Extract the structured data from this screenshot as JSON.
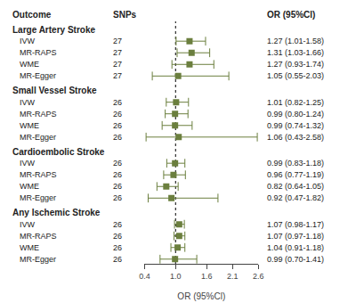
{
  "chart_data": {
    "type": "forest",
    "columns": [
      "Outcome",
      "SNPs",
      "OR (95%Cl)"
    ],
    "xlabel": "OR (95%Cl)",
    "xlim": [
      0.4,
      2.6
    ],
    "xticks": [
      0.4,
      {
        "value": 1.0,
        "label": "1.0"
      },
      1.6,
      2.1,
      2.6
    ],
    "reference": 1.0,
    "color": "#6b7f3e",
    "marker": "square",
    "grid": false,
    "groups": [
      {
        "name": "Large Artery Stroke",
        "rows": [
          {
            "name": "IVW",
            "snps": 27,
            "value": 1.27,
            "ci_low": 1.01,
            "ci_high": 1.58,
            "label": "1.27 (1.01-1.58)"
          },
          {
            "name": "MR-RAPS",
            "snps": 27,
            "value": 1.31,
            "ci_low": 1.03,
            "ci_high": 1.66,
            "label": "1.31 (1.03-1.66)"
          },
          {
            "name": "WME",
            "snps": 27,
            "value": 1.27,
            "ci_low": 0.93,
            "ci_high": 1.74,
            "label": "1.27 (0.93-1.74)"
          },
          {
            "name": "MR-Egger",
            "snps": 27,
            "value": 1.05,
            "ci_low": 0.55,
            "ci_high": 2.03,
            "label": "1.05 (0.55-2.03)"
          }
        ]
      },
      {
        "name": "Small Vessel Stroke",
        "rows": [
          {
            "name": "IVW",
            "snps": 26,
            "value": 1.01,
            "ci_low": 0.82,
            "ci_high": 1.25,
            "label": "1.01 (0.82-1.25)"
          },
          {
            "name": "MR-RAPS",
            "snps": 26,
            "value": 0.99,
            "ci_low": 0.8,
            "ci_high": 1.24,
            "label": "0.99 (0.80-1.24)"
          },
          {
            "name": "WME",
            "snps": 26,
            "value": 0.99,
            "ci_low": 0.74,
            "ci_high": 1.32,
            "label": "0.99 (0.74-1.32)"
          },
          {
            "name": "MR-Egger",
            "snps": 26,
            "value": 1.06,
            "ci_low": 0.43,
            "ci_high": 2.58,
            "label": "1.06 (0.43-2.58)"
          }
        ]
      },
      {
        "name": "Cardioembolic Stroke",
        "rows": [
          {
            "name": "IVW",
            "snps": 26,
            "value": 0.99,
            "ci_low": 0.83,
            "ci_high": 1.18,
            "label": "0.99 (0.83-1.18)"
          },
          {
            "name": "MR-RAPS",
            "snps": 26,
            "value": 0.96,
            "ci_low": 0.77,
            "ci_high": 1.19,
            "label": "0.96 (0.77-1.19)"
          },
          {
            "name": "WME",
            "snps": 26,
            "value": 0.82,
            "ci_low": 0.64,
            "ci_high": 1.05,
            "label": "0.82 (0.64-1.05)"
          },
          {
            "name": "MR-Egger",
            "snps": 26,
            "value": 0.92,
            "ci_low": 0.47,
            "ci_high": 1.82,
            "label": "0.92 (0.47-1.82)"
          }
        ]
      },
      {
        "name": "Any Ischemic Stroke",
        "rows": [
          {
            "name": "IVW",
            "snps": 26,
            "value": 1.07,
            "ci_low": 0.98,
            "ci_high": 1.17,
            "label": "1.07 (0.98-1.17)"
          },
          {
            "name": "MR-RAPS",
            "snps": 26,
            "value": 1.07,
            "ci_low": 0.97,
            "ci_high": 1.18,
            "label": "1.07 (0.97-1.18)"
          },
          {
            "name": "WME",
            "snps": 26,
            "value": 1.04,
            "ci_low": 0.91,
            "ci_high": 1.18,
            "label": "1.04 (0.91-1.18)"
          },
          {
            "name": "MR-Egger",
            "snps": 26,
            "value": 0.99,
            "ci_low": 0.7,
            "ci_high": 1.41,
            "label": "0.99 (0.70-1.41)"
          }
        ]
      }
    ]
  }
}
